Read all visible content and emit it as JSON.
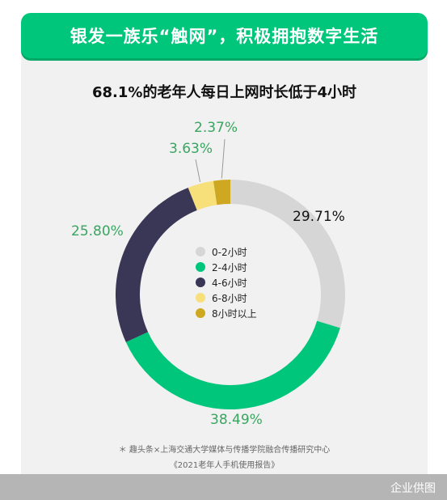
{
  "header": {
    "title": "银发一族乐“触网”，积极拥抱数字生活"
  },
  "colors": {
    "accent": "#00c67c",
    "segments": [
      "#d6d6d6",
      "#00c67c",
      "#3a3656",
      "#f7e07a",
      "#cfa821"
    ],
    "label_green": "#3aa561",
    "label_dark": "#111111"
  },
  "chart_data": {
    "type": "pie",
    "donut": true,
    "title": "68.1%的老年人每日上网时长低于4小时",
    "categories": [
      "0-2小时",
      "2-4小时",
      "4-6小时",
      "6-8小时",
      "8小时以上"
    ],
    "values": [
      29.71,
      38.49,
      25.8,
      3.63,
      2.37
    ],
    "value_labels": [
      "29.71%",
      "38.49%",
      "25.80%",
      "3.63%",
      "2.37%"
    ],
    "legend_position": "center"
  },
  "footnotes": {
    "source": "＊ 趣头条×上海交通大学媒体与传播学院融合传播研究中心",
    "report": "《2021老年人手机使用报告》"
  },
  "watermark": "企业供图"
}
